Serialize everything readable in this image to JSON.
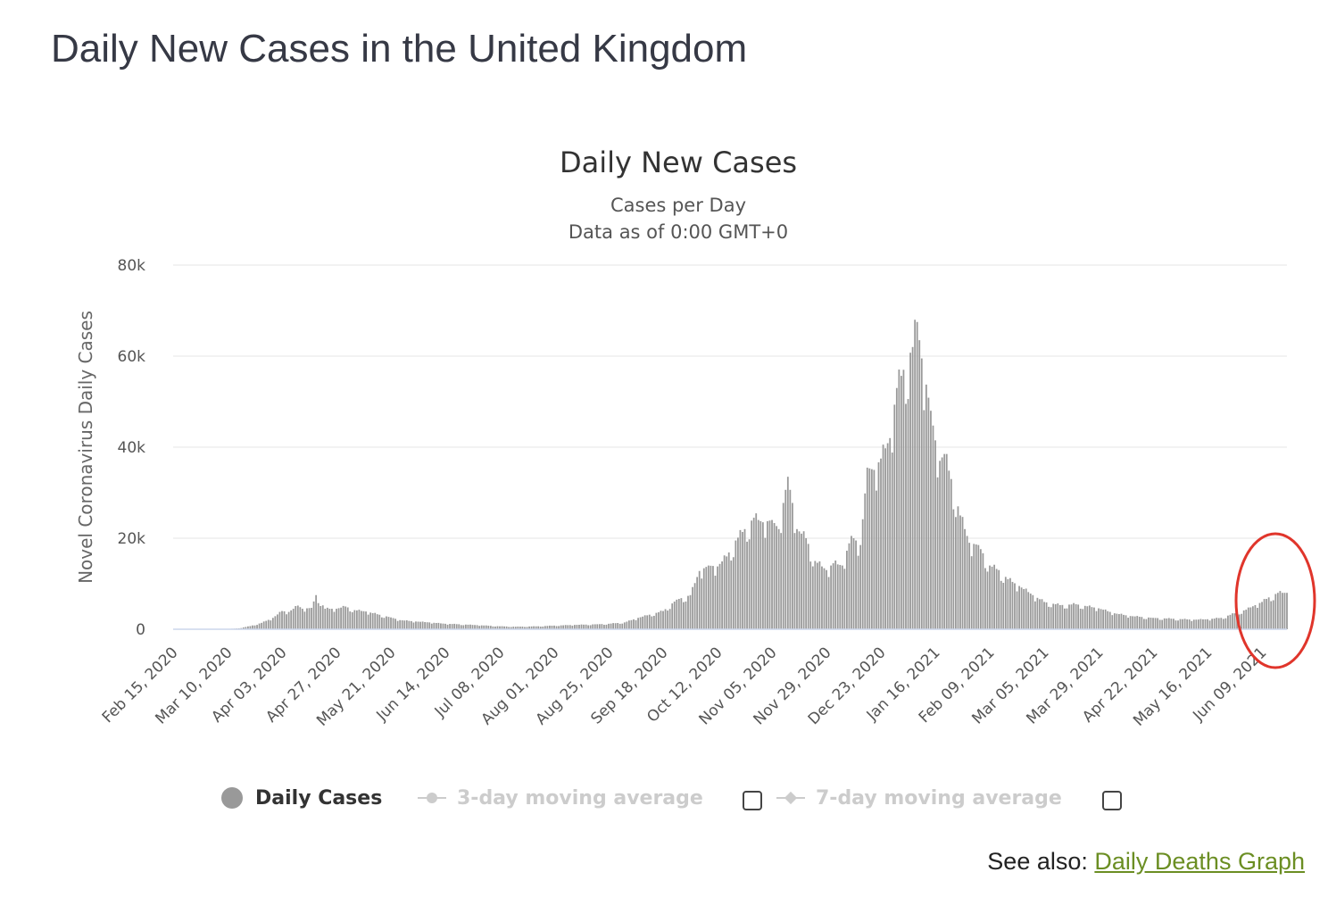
{
  "page": {
    "heading": "Daily New Cases in the United Kingdom",
    "see_also_label": "See also:",
    "see_also_link": "Daily Deaths Graph"
  },
  "legend": {
    "daily_cases": "Daily Cases",
    "avg3": "3-day moving average",
    "avg7": "7-day moving average"
  },
  "colors": {
    "bars": "#999999",
    "highlight_circle": "#e0352b",
    "link": "#6b8e23"
  },
  "chart_data": {
    "type": "bar",
    "title": "Daily New Cases",
    "subtitle": [
      "Cases per Day",
      "Data as of 0:00 GMT+0"
    ],
    "ylabel": "Novel Coronavirus Daily Cases",
    "xlabel": "",
    "ylim": [
      0,
      80000
    ],
    "yticks": [
      0,
      20000,
      40000,
      60000,
      80000
    ],
    "ytick_labels": [
      "0",
      "20k",
      "40k",
      "60k",
      "80k"
    ],
    "x_start": "2020-02-15",
    "x_end": "2021-06-20",
    "x_tick_labels": [
      "Feb 15, 2020",
      "Mar 10, 2020",
      "Apr 03, 2020",
      "Apr 27, 2020",
      "May 21, 2020",
      "Jun 14, 2020",
      "Jul 08, 2020",
      "Aug 01, 2020",
      "Aug 25, 2020",
      "Sep 18, 2020",
      "Oct 12, 2020",
      "Nov 05, 2020",
      "Nov 29, 2020",
      "Dec 23, 2020",
      "Jan 16, 2021",
      "Feb 09, 2021",
      "Mar 05, 2021",
      "Mar 29, 2021",
      "Apr 22, 2021",
      "May 16, 2021",
      "Jun 09, 2021"
    ],
    "grid": true,
    "legend": "bottom",
    "series": [
      {
        "name": "Daily Cases",
        "points": [
          [
            "2020-02-15",
            0
          ],
          [
            "2020-03-01",
            10
          ],
          [
            "2020-03-10",
            50
          ],
          [
            "2020-03-15",
            200
          ],
          [
            "2020-03-20",
            700
          ],
          [
            "2020-03-25",
            1400
          ],
          [
            "2020-03-30",
            2500
          ],
          [
            "2020-04-03",
            4000
          ],
          [
            "2020-04-06",
            3800
          ],
          [
            "2020-04-10",
            5200
          ],
          [
            "2020-04-12",
            4500
          ],
          [
            "2020-04-16",
            4700
          ],
          [
            "2020-04-18",
            7500
          ],
          [
            "2020-04-22",
            4500
          ],
          [
            "2020-04-27",
            4500
          ],
          [
            "2020-05-01",
            5000
          ],
          [
            "2020-05-05",
            4200
          ],
          [
            "2020-05-10",
            3900
          ],
          [
            "2020-05-15",
            3300
          ],
          [
            "2020-05-21",
            2600
          ],
          [
            "2020-05-25",
            2000
          ],
          [
            "2020-06-01",
            1700
          ],
          [
            "2020-06-07",
            1500
          ],
          [
            "2020-06-14",
            1200
          ],
          [
            "2020-06-20",
            1100
          ],
          [
            "2020-06-28",
            900
          ],
          [
            "2020-07-08",
            650
          ],
          [
            "2020-07-15",
            550
          ],
          [
            "2020-07-25",
            650
          ],
          [
            "2020-08-01",
            800
          ],
          [
            "2020-08-10",
            950
          ],
          [
            "2020-08-20",
            1100
          ],
          [
            "2020-08-25",
            1200
          ],
          [
            "2020-09-01",
            1500
          ],
          [
            "2020-09-07",
            2500
          ],
          [
            "2020-09-12",
            3200
          ],
          [
            "2020-09-18",
            4000
          ],
          [
            "2020-09-24",
            6500
          ],
          [
            "2020-09-30",
            7500
          ],
          [
            "2020-10-04",
            12800
          ],
          [
            "2020-10-08",
            14000
          ],
          [
            "2020-10-12",
            13800
          ],
          [
            "2020-10-16",
            16000
          ],
          [
            "2020-10-20",
            19500
          ],
          [
            "2020-10-24",
            22000
          ],
          [
            "2020-10-28",
            24500
          ],
          [
            "2020-11-01",
            23500
          ],
          [
            "2020-11-05",
            24000
          ],
          [
            "2020-11-08",
            22000
          ],
          [
            "2020-11-12",
            33500
          ],
          [
            "2020-11-16",
            22000
          ],
          [
            "2020-11-20",
            20000
          ],
          [
            "2020-11-24",
            15000
          ],
          [
            "2020-11-29",
            13000
          ],
          [
            "2020-12-02",
            14500
          ],
          [
            "2020-12-06",
            14000
          ],
          [
            "2020-12-10",
            20500
          ],
          [
            "2020-12-14",
            18500
          ],
          [
            "2020-12-17",
            35500
          ],
          [
            "2020-12-20",
            35000
          ],
          [
            "2020-12-23",
            37500
          ],
          [
            "2020-12-27",
            42000
          ],
          [
            "2020-12-30",
            53000
          ],
          [
            "2021-01-02",
            57000
          ],
          [
            "2021-01-06",
            62000
          ],
          [
            "2021-01-08",
            67500
          ],
          [
            "2021-01-10",
            59500
          ],
          [
            "2021-01-14",
            48000
          ],
          [
            "2021-01-16",
            41500
          ],
          [
            "2021-01-18",
            37000
          ],
          [
            "2021-01-20",
            38500
          ],
          [
            "2021-01-23",
            33000
          ],
          [
            "2021-01-27",
            25000
          ],
          [
            "2021-01-31",
            19000
          ],
          [
            "2021-02-04",
            18500
          ],
          [
            "2021-02-09",
            14000
          ],
          [
            "2021-02-13",
            13000
          ],
          [
            "2021-02-17",
            11000
          ],
          [
            "2021-02-22",
            9500
          ],
          [
            "2021-02-28",
            7500
          ],
          [
            "2021-03-05",
            6000
          ],
          [
            "2021-03-12",
            5300
          ],
          [
            "2021-03-19",
            5500
          ],
          [
            "2021-03-29",
            4600
          ],
          [
            "2021-04-05",
            3500
          ],
          [
            "2021-04-12",
            2900
          ],
          [
            "2021-04-22",
            2500
          ],
          [
            "2021-05-01",
            2300
          ],
          [
            "2021-05-10",
            2100
          ],
          [
            "2021-05-16",
            2200
          ],
          [
            "2021-05-22",
            2500
          ],
          [
            "2021-05-28",
            3500
          ],
          [
            "2021-06-02",
            4300
          ],
          [
            "2021-06-06",
            5300
          ],
          [
            "2021-06-09",
            6000
          ],
          [
            "2021-06-12",
            7000
          ],
          [
            "2021-06-16",
            8000
          ],
          [
            "2021-06-20",
            8000
          ]
        ]
      },
      {
        "name": "3-day moving average",
        "points": []
      },
      {
        "name": "7-day moving average",
        "points": []
      }
    ]
  }
}
